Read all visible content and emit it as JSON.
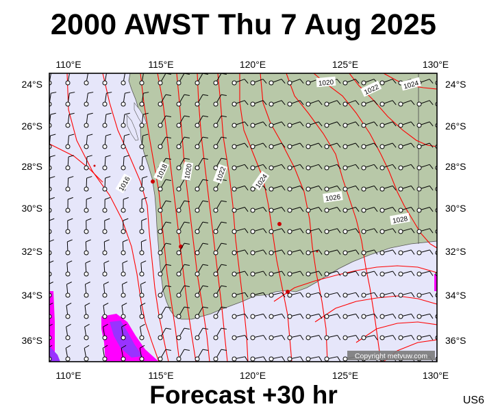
{
  "header": {
    "title": "2000 AWST Thu 7 Aug 2025"
  },
  "footer": {
    "forecast": "Forecast +30 hr",
    "region_code": "US6"
  },
  "copyright": "Copyright metvuw.com",
  "map": {
    "lon_range": [
      109,
      130
    ],
    "lat_range": [
      -37,
      -23.5
    ],
    "lon_labels": [
      "110°E",
      "115°E",
      "120°E",
      "125°E",
      "130°E"
    ],
    "lat_labels": [
      "24°S",
      "26°S",
      "28°S",
      "30°S",
      "32°S",
      "34°S",
      "36°S"
    ],
    "isobar_labels": [
      "1016",
      "1018",
      "1020",
      "1022",
      "1024",
      "1026",
      "1028",
      "1020",
      "1022",
      "1024"
    ],
    "colors": {
      "ocean": "#e6e6fa",
      "land": "#b8c8a8",
      "isobar": "#ff0000",
      "rain_light": "#ff00ff",
      "rain_heavy": "#9933ff"
    }
  }
}
